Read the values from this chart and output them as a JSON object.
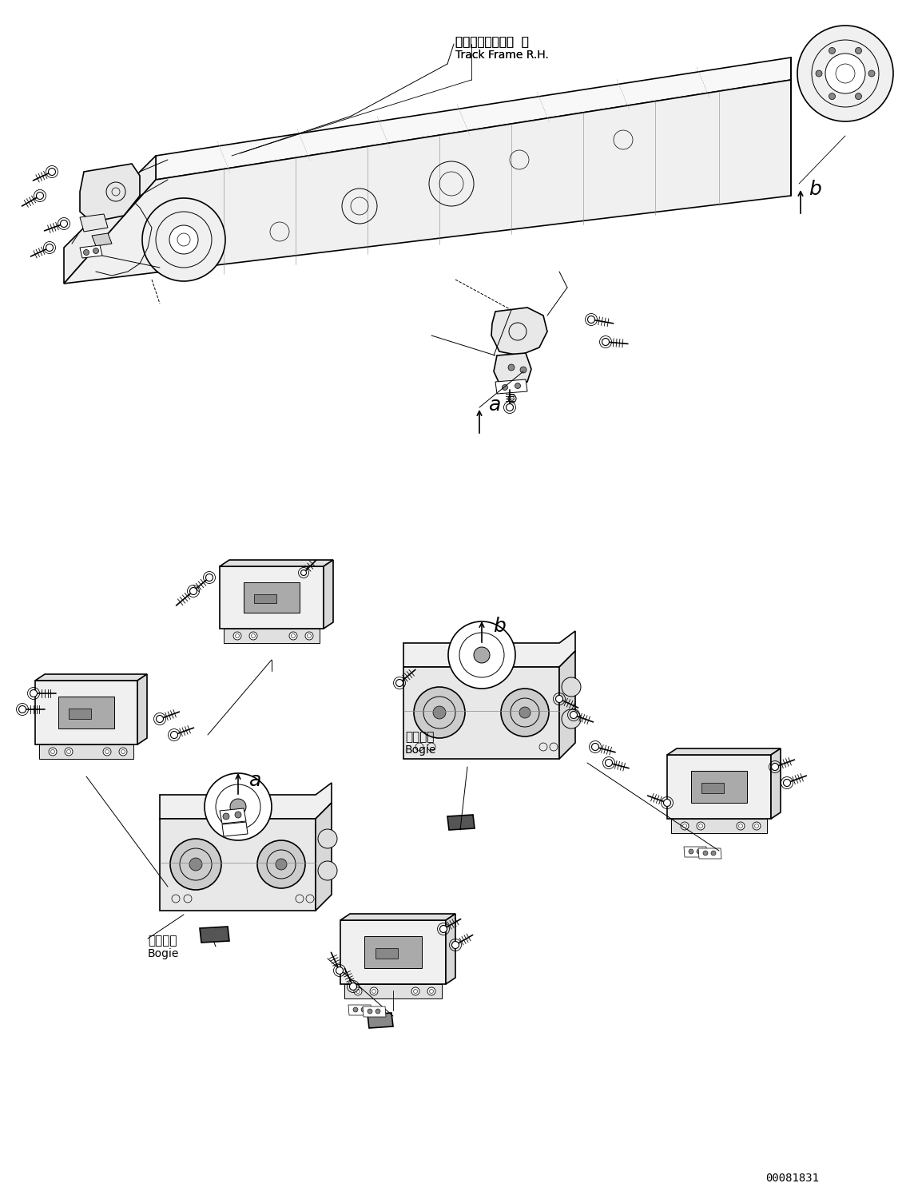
{
  "background_color": "#ffffff",
  "part_number": "00081831",
  "label_frame_jp": "トラックフレーム  右",
  "label_frame_en": "Track Frame R.H.",
  "label_bogie_jp": "ボギーー",
  "label_bogie_en": "Bogie",
  "label_a": "a",
  "label_b": "b",
  "figsize": [
    11.39,
    14.91
  ],
  "dpi": 100,
  "line_color": "#000000",
  "lw_main": 1.2,
  "lw_thin": 0.7,
  "lw_dashed": 0.6
}
